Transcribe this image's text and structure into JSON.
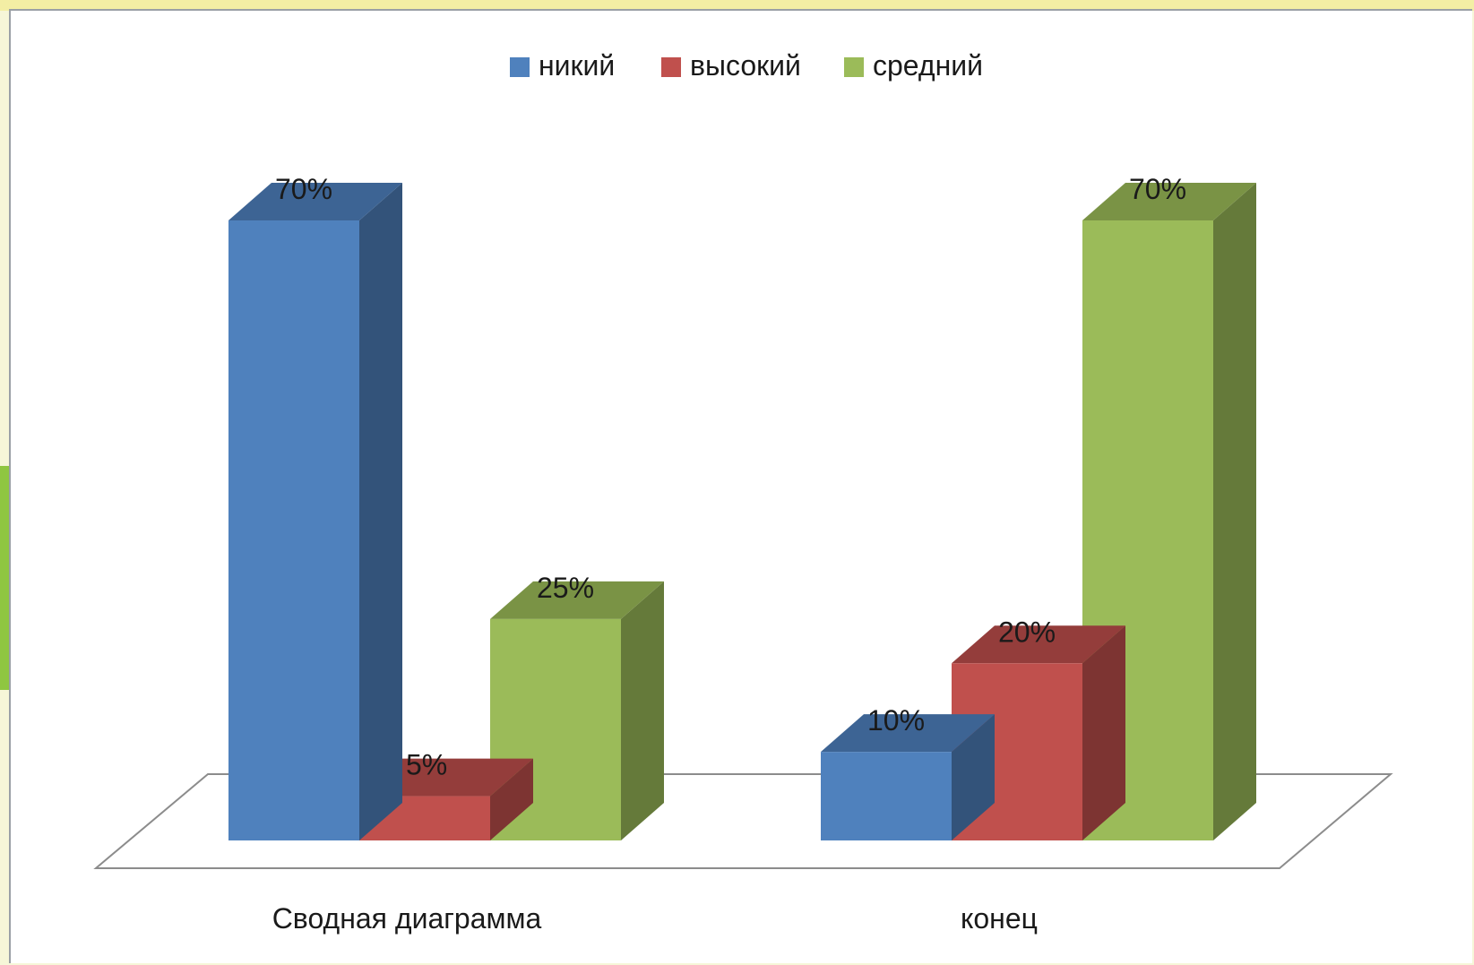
{
  "chart_data": {
    "type": "bar",
    "categories": [
      "Сводная диаграмма",
      "конец"
    ],
    "series": [
      {
        "name": "никий",
        "values": [
          70,
          10
        ],
        "color": "#4f81bd",
        "side_color": "#33537a",
        "top_color": "#3d6494"
      },
      {
        "name": "высокий",
        "values": [
          5,
          20
        ],
        "color": "#c0504d",
        "side_color": "#7d3432",
        "top_color": "#943d3b"
      },
      {
        "name": "средний",
        "values": [
          25,
          70
        ],
        "color": "#9bbb59",
        "side_color": "#657a3a",
        "top_color": "#7a9345"
      }
    ],
    "data_labels": [
      [
        "70%",
        "10%"
      ],
      [
        "5%",
        "20%"
      ],
      [
        "25%",
        "70%"
      ]
    ],
    "title": "",
    "xlabel": "",
    "ylabel": "",
    "ylim": [
      0,
      70
    ],
    "grid": false,
    "legend_position": "top"
  }
}
